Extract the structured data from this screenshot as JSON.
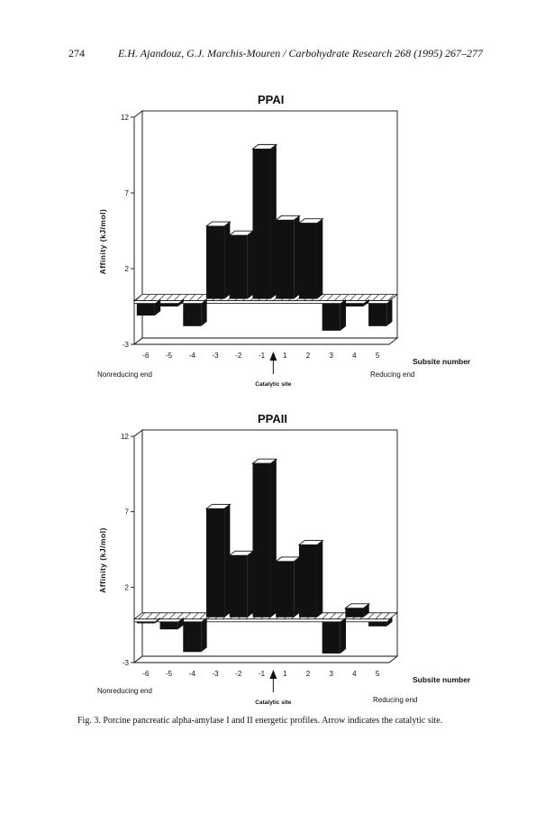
{
  "header": {
    "page_number": "274",
    "citation": "E.H. Ajandouz, G.J. Marchis-Mouren / Carbohydrate Research 268 (1995) 267–277"
  },
  "caption": "Fig. 3. Porcine pancreatic alpha-amylase I and II energetic profiles. Arrow indicates the catalytic site.",
  "chart_data": [
    {
      "type": "bar",
      "title": "PPAI",
      "ylabel": "Affinity   (kJ/mol)",
      "xlabel": "Subsite number",
      "ylim": [
        -3,
        12
      ],
      "yticks": [
        "12",
        "7",
        "2",
        "-3"
      ],
      "categories": [
        "-6",
        "-5",
        "-4",
        "-3",
        "-2",
        "-1",
        "1",
        "2",
        "3",
        "4",
        "5"
      ],
      "values": [
        -0.8,
        -0.2,
        -1.5,
        4.8,
        4.2,
        9.9,
        5.2,
        5.0,
        -1.8,
        -0.2,
        -1.5
      ],
      "left_label": "Nonreducing end",
      "right_label": "Reducing end",
      "arrow_label": "Catalytic site",
      "grid": false
    },
    {
      "type": "bar",
      "title": "PPAII",
      "ylabel": "Affinity   (kJ/mol)",
      "xlabel": "Subsite number",
      "ylim": [
        -3,
        12
      ],
      "yticks": [
        "12",
        "7",
        "2",
        "-3"
      ],
      "categories": [
        "-6",
        "-5",
        "-4",
        "-3",
        "-2",
        "-1",
        "1",
        "2",
        "3",
        "4",
        "5"
      ],
      "values": [
        -0.1,
        -0.5,
        -2.0,
        7.2,
        4.1,
        10.2,
        3.7,
        4.8,
        -2.1,
        0.6,
        -0.3
      ],
      "left_label": "Nonreducing end",
      "right_label": "Reducing end",
      "arrow_label": "Catalytic site",
      "grid": false
    }
  ]
}
